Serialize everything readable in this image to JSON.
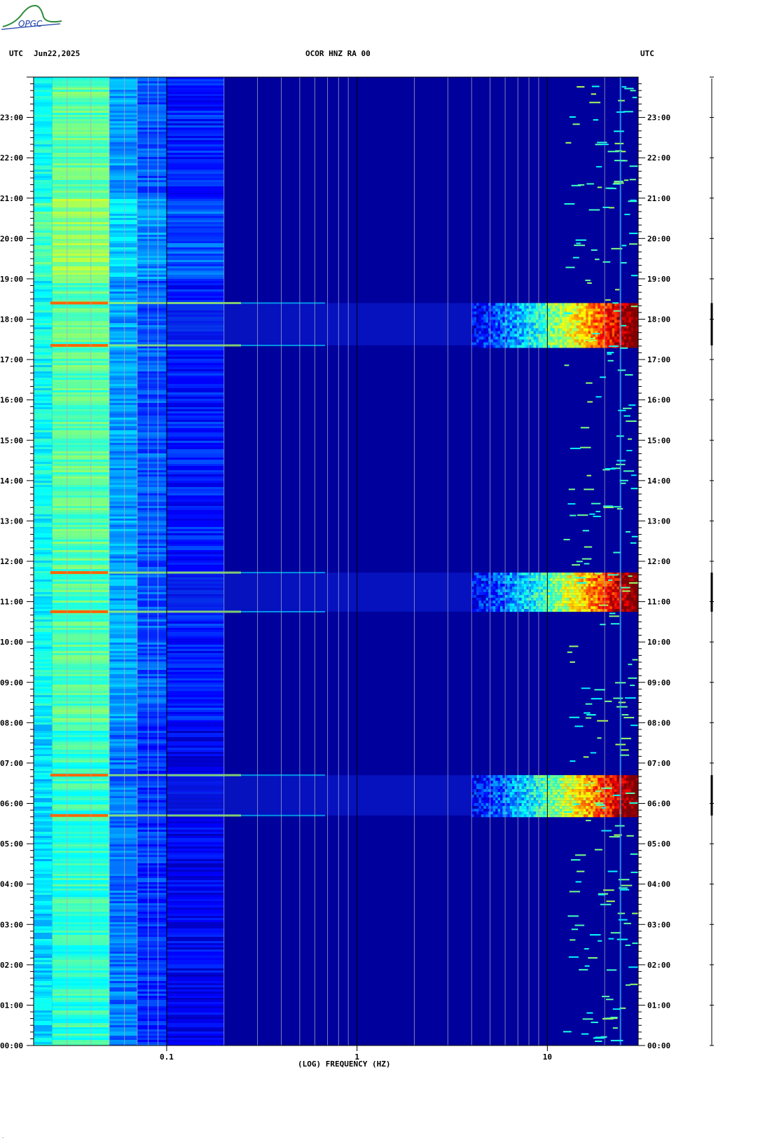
{
  "header": {
    "left_utc": "UTC",
    "date": "Jun22,2025",
    "station": "OCOR HNZ RA 00",
    "right_utc": "UTC"
  },
  "logo": {
    "text": "OPGC"
  },
  "colors": {
    "background": "#00009c",
    "brand_green": "#2e8b3a",
    "brand_blue": "#1a3ea8"
  },
  "chart_data": {
    "type": "heatmap",
    "title": "OCOR HNZ RA 00",
    "xlabel": "(LOG) FREQUENCY (HZ)",
    "ylabel": "UTC",
    "x_scale": "log",
    "xlim": [
      0.02,
      30
    ],
    "x_ticks": [
      0.1,
      1,
      10
    ],
    "x_tick_labels": [
      "0.1",
      "1",
      "10"
    ],
    "ylim_hours": [
      0,
      24
    ],
    "y_ticks": [
      "00:00",
      "01:00",
      "02:00",
      "03:00",
      "04:00",
      "05:00",
      "06:00",
      "07:00",
      "08:00",
      "09:00",
      "10:00",
      "11:00",
      "12:00",
      "13:00",
      "14:00",
      "15:00",
      "16:00",
      "17:00",
      "18:00",
      "19:00",
      "20:00",
      "21:00",
      "22:00",
      "23:00"
    ],
    "gridlines_hz": [
      0.02,
      0.03,
      0.04,
      0.05,
      0.06,
      0.07,
      0.08,
      0.09,
      0.1,
      0.2,
      0.3,
      0.4,
      0.5,
      0.6,
      0.7,
      0.8,
      0.9,
      1,
      2,
      3,
      4,
      5,
      6,
      7,
      8,
      9,
      10,
      20
    ],
    "events": [
      {
        "start_hour": 5.7,
        "end_hour": 6.7
      },
      {
        "start_hour": 10.75,
        "end_hour": 11.72
      },
      {
        "start_hour": 17.35,
        "end_hour": 18.4
      }
    ],
    "colorscale": [
      "#00008f",
      "#0000ff",
      "#0080ff",
      "#00ffff",
      "#80ff80",
      "#ffff00",
      "#ff8000",
      "#ff0000",
      "#800000"
    ]
  }
}
